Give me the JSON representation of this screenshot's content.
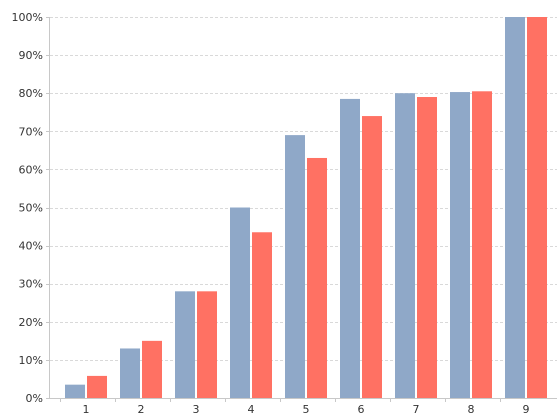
{
  "chart_data": {
    "type": "bar",
    "title": "",
    "xlabel": "",
    "ylabel": "",
    "categories": [
      "1",
      "2",
      "3",
      "4",
      "5",
      "6",
      "7",
      "8",
      "9"
    ],
    "series": [
      {
        "color": "#8fa8c8",
        "values": [
          3.5,
          13,
          28,
          50,
          69,
          78.5,
          80,
          80.3,
          100
        ]
      },
      {
        "color": "#ff7163",
        "values": [
          5.8,
          15,
          28,
          43.5,
          63,
          74,
          79,
          80.5,
          100
        ]
      }
    ],
    "ylim": [
      0,
      100
    ],
    "yticks": [
      0,
      10,
      20,
      30,
      40,
      50,
      60,
      70,
      80,
      90,
      100
    ],
    "ytick_labels": [
      "0%",
      "10%",
      "20%",
      "30%",
      "40%",
      "50%",
      "60%",
      "70%",
      "80%",
      "90%",
      "100%"
    ],
    "grid": true,
    "legend": "none"
  }
}
